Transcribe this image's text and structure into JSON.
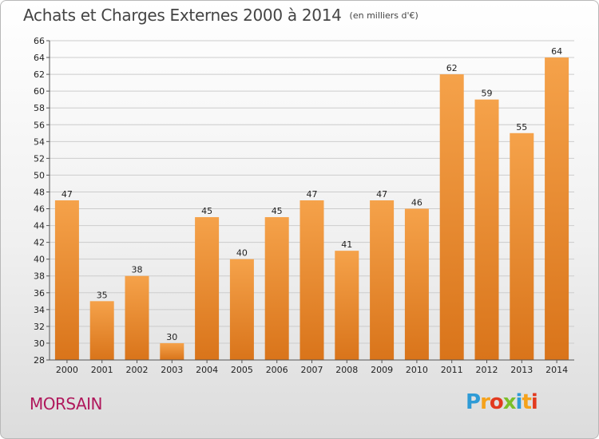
{
  "header": {
    "title": "Achats et Charges Externes 2000 à 2014",
    "unit": "(en milliers d'€)"
  },
  "footer": {
    "commune": "MORSAIN",
    "brand_letters": [
      "P",
      "r",
      "o",
      "x",
      "i",
      "t",
      "i"
    ],
    "brand_colors": [
      "#2e9bd6",
      "#f5a21b",
      "#e23a1f",
      "#7bbf2a",
      "#2e9bd6",
      "#f5a21b",
      "#e23a1f"
    ]
  },
  "colors": {
    "bar_top": "#f5a24a",
    "bar_bottom": "#d9741a",
    "grid": "#cccccc",
    "axis": "#555555"
  },
  "chart_data": {
    "type": "bar",
    "title": "Achats et Charges Externes 2000 à 2014",
    "subtitle": "(en milliers d'€)",
    "categories": [
      "2000",
      "2001",
      "2002",
      "2003",
      "2004",
      "2005",
      "2006",
      "2007",
      "2008",
      "2009",
      "2010",
      "2011",
      "2012",
      "2013",
      "2014"
    ],
    "values": [
      47,
      35,
      38,
      30,
      45,
      40,
      45,
      47,
      41,
      47,
      46,
      62,
      59,
      55,
      64
    ],
    "ylim": [
      28,
      66
    ],
    "yticks": [
      28,
      30,
      32,
      34,
      36,
      38,
      40,
      42,
      44,
      46,
      48,
      50,
      52,
      54,
      56,
      58,
      60,
      62,
      64,
      66
    ],
    "grid": true,
    "xlabel": "",
    "ylabel": ""
  }
}
